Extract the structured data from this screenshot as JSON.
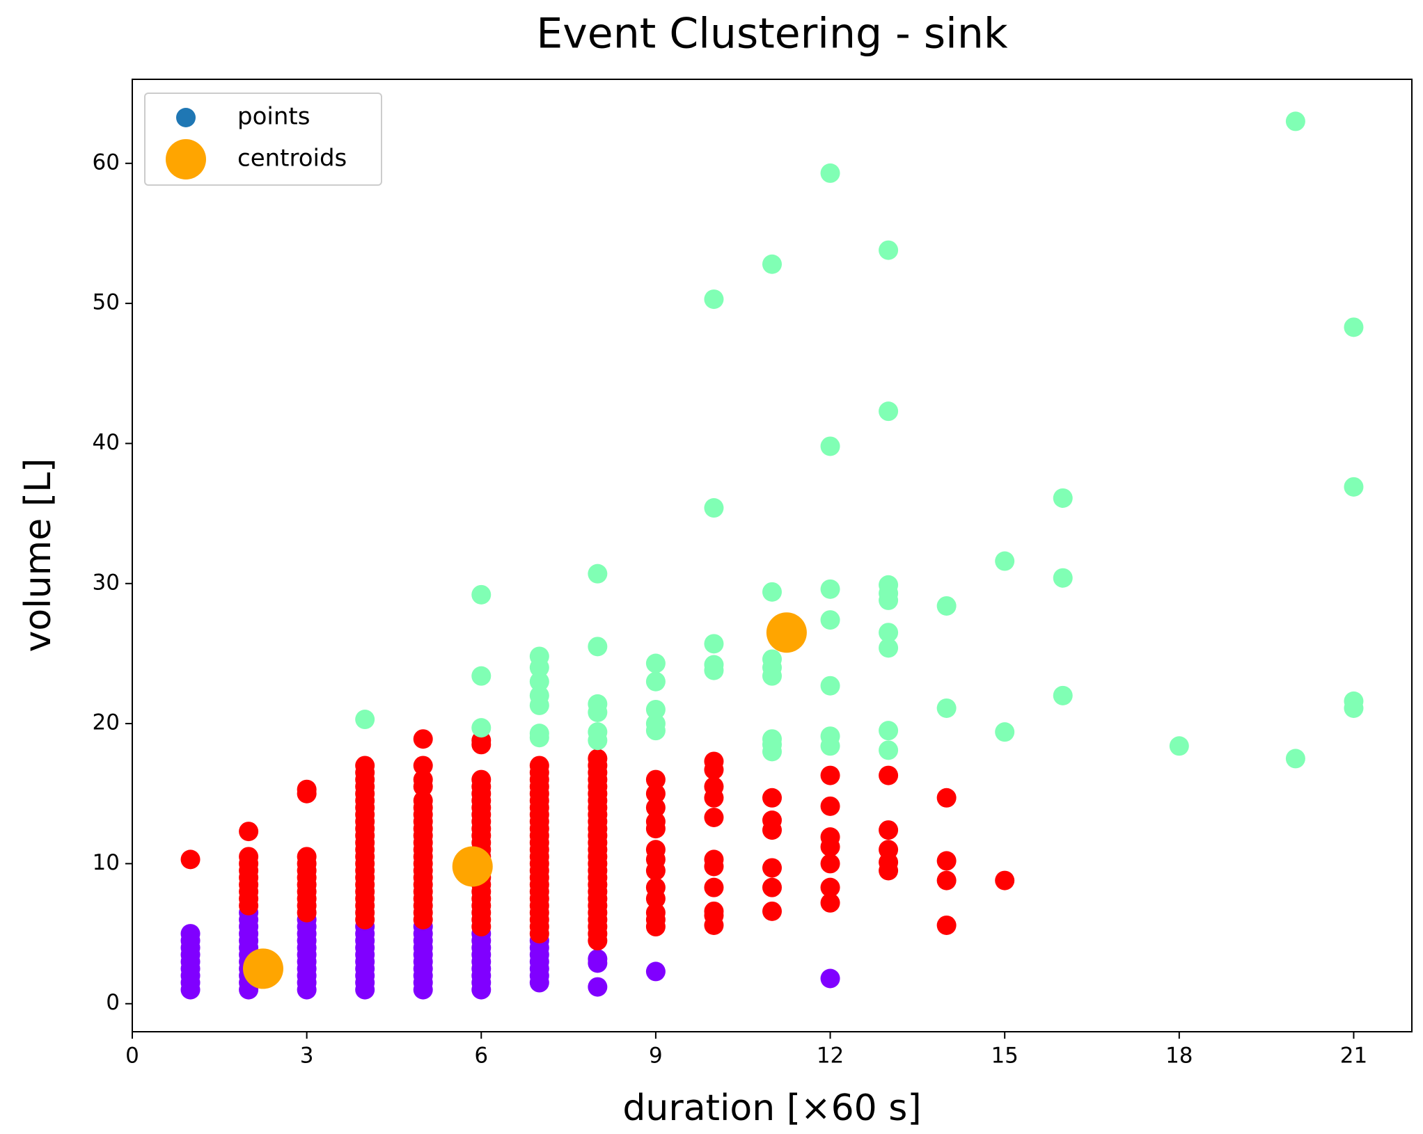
{
  "chart_data": {
    "type": "scatter",
    "title": "Event Clustering - sink",
    "xlabel": "duration [×60 s]",
    "ylabel": "volume [L]",
    "xlim": [
      0,
      22
    ],
    "ylim": [
      -2,
      66
    ],
    "xticks": [
      0,
      3,
      6,
      9,
      12,
      15,
      18,
      21
    ],
    "yticks": [
      0,
      10,
      20,
      30,
      40,
      50,
      60
    ],
    "legend": "upper left",
    "series": [
      {
        "name": "points",
        "color": "#1f77b4",
        "groups": [
          {
            "color": "#8000ff",
            "columns": [
              {
                "x": 1,
                "values": [
                  1,
                  1.5,
                  2,
                  2.5,
                  3,
                  3.5,
                  4,
                  4.5,
                  5
                ]
              },
              {
                "x": 2,
                "values": [
                  1,
                  1.5,
                  2,
                  2.5,
                  3,
                  3.5,
                  4,
                  4.5,
                  5,
                  5.5,
                  6,
                  6.5
                ]
              },
              {
                "x": 3,
                "values": [
                  1,
                  1.5,
                  2,
                  2.5,
                  3,
                  3.5,
                  4,
                  4.5,
                  5,
                  5.5,
                  6
                ]
              },
              {
                "x": 4,
                "values": [
                  1,
                  1.5,
                  2,
                  2.5,
                  3,
                  3.5,
                  4,
                  4.5,
                  5,
                  5.5
                ]
              },
              {
                "x": 5,
                "values": [
                  1,
                  1.5,
                  2,
                  2.5,
                  3,
                  3.5,
                  4,
                  4.5,
                  5,
                  5.5
                ]
              },
              {
                "x": 6,
                "values": [
                  1,
                  1.5,
                  2,
                  2.5,
                  3,
                  3.5,
                  4,
                  4.5,
                  5
                ]
              },
              {
                "x": 7,
                "values": [
                  1.5,
                  2,
                  2.5,
                  3,
                  3.5,
                  4,
                  4.5
                ]
              },
              {
                "x": 8,
                "values": [
                  1.2,
                  2.9,
                  3.2
                ]
              },
              {
                "x": 9,
                "values": [
                  2.3
                ]
              },
              {
                "x": 12,
                "values": [
                  1.8
                ]
              }
            ]
          },
          {
            "color": "#ff0000",
            "columns": [
              {
                "x": 1,
                "values": [
                  10.3
                ]
              },
              {
                "x": 2,
                "values": [
                  7,
                  7.5,
                  8,
                  8.5,
                  9,
                  9.5,
                  10,
                  10.5,
                  12.3
                ]
              },
              {
                "x": 3,
                "values": [
                  6.5,
                  7,
                  7.5,
                  8,
                  8.5,
                  9,
                  9.5,
                  10,
                  10.5,
                  15,
                  15.3
                ]
              },
              {
                "x": 4,
                "values": [
                  6,
                  6.5,
                  7,
                  7.5,
                  8,
                  8.5,
                  9,
                  9.5,
                  10,
                  10.5,
                  11,
                  11.5,
                  12,
                  12.5,
                  13,
                  13.5,
                  14,
                  14.5,
                  15,
                  15.5,
                  16,
                  16.5,
                  17
                ]
              },
              {
                "x": 5,
                "values": [
                  6,
                  6.5,
                  7,
                  7.5,
                  8,
                  8.5,
                  9,
                  9.5,
                  10,
                  10.5,
                  11,
                  11.5,
                  12,
                  12.5,
                  13,
                  13.5,
                  14,
                  14.5,
                  15.5,
                  16,
                  17,
                  18.9
                ]
              },
              {
                "x": 6,
                "values": [
                  5.5,
                  6,
                  6.5,
                  7,
                  7.5,
                  8,
                  8.5,
                  9,
                  9.5,
                  10,
                  10.5,
                  11,
                  11.5,
                  12,
                  12.5,
                  13,
                  13.5,
                  14,
                  14.5,
                  15,
                  15.5,
                  16,
                  18.5,
                  18.8
                ]
              },
              {
                "x": 7,
                "values": [
                  5,
                  5.5,
                  6,
                  6.5,
                  7,
                  7.5,
                  8,
                  8.5,
                  9,
                  9.5,
                  10,
                  10.5,
                  11,
                  11.5,
                  12,
                  12.5,
                  13,
                  13.5,
                  14,
                  14.5,
                  15,
                  15.5,
                  16,
                  16.5,
                  17
                ]
              },
              {
                "x": 8,
                "values": [
                  4.5,
                  5,
                  5.5,
                  6,
                  6.5,
                  7,
                  7.5,
                  8,
                  8.5,
                  9,
                  9.5,
                  10,
                  10.5,
                  11,
                  11.5,
                  12,
                  12.5,
                  13,
                  13.5,
                  14,
                  14.5,
                  15,
                  15.5,
                  16,
                  16.5,
                  17,
                  17.5
                ]
              },
              {
                "x": 9,
                "values": [
                  5.5,
                  6,
                  6.5,
                  7.5,
                  8.3,
                  9.5,
                  10.3,
                  11,
                  12.5,
                  13,
                  14,
                  15,
                  16
                ]
              },
              {
                "x": 10,
                "values": [
                  5.6,
                  6.3,
                  6.6,
                  8.3,
                  9.8,
                  10.3,
                  13.3,
                  14.7,
                  15.5,
                  16.7,
                  17.3
                ]
              },
              {
                "x": 11,
                "values": [
                  6.6,
                  8.3,
                  9.7,
                  12.4,
                  13.1,
                  14.7
                ]
              },
              {
                "x": 12,
                "values": [
                  7.2,
                  8.3,
                  10,
                  11.2,
                  11.9,
                  14.1,
                  16.3
                ]
              },
              {
                "x": 13,
                "values": [
                  9.5,
                  10.1,
                  11,
                  12.4,
                  16.3
                ]
              },
              {
                "x": 14,
                "values": [
                  5.6,
                  8.8,
                  10.2,
                  14.7
                ]
              },
              {
                "x": 15,
                "values": [
                  8.8
                ]
              }
            ]
          },
          {
            "color": "#80ffb4",
            "columns": [
              {
                "x": 4,
                "values": [
                  20.3
                ]
              },
              {
                "x": 6,
                "values": [
                  19.7,
                  23.4,
                  29.2
                ]
              },
              {
                "x": 7,
                "values": [
                  19,
                  19.3,
                  21.3,
                  22,
                  23,
                  24,
                  24.8
                ]
              },
              {
                "x": 8,
                "values": [
                  18.8,
                  19.4,
                  20.8,
                  21.4,
                  25.5,
                  30.7
                ]
              },
              {
                "x": 9,
                "values": [
                  19.5,
                  20,
                  21,
                  23,
                  24.3
                ]
              },
              {
                "x": 10,
                "values": [
                  23.8,
                  24.2,
                  25.7,
                  35.4,
                  50.3
                ]
              },
              {
                "x": 11,
                "values": [
                  18,
                  18.5,
                  18.9,
                  23.4,
                  24,
                  24.6,
                  29.4,
                  52.8
                ]
              },
              {
                "x": 12,
                "values": [
                  18.4,
                  19.1,
                  22.7,
                  27.4,
                  29.6,
                  39.8,
                  59.3
                ]
              },
              {
                "x": 13,
                "values": [
                  18.1,
                  19.5,
                  25.4,
                  26.5,
                  28.8,
                  29.3,
                  29.9,
                  42.3,
                  53.8
                ]
              },
              {
                "x": 14,
                "values": [
                  21.1,
                  28.4
                ]
              },
              {
                "x": 15,
                "values": [
                  19.4,
                  31.6
                ]
              },
              {
                "x": 16,
                "values": [
                  22,
                  30.4,
                  36.1
                ]
              },
              {
                "x": 18,
                "values": [
                  18.4
                ]
              },
              {
                "x": 20,
                "values": [
                  17.5,
                  63
                ]
              },
              {
                "x": 21,
                "values": [
                  21.1,
                  21.6,
                  36.9,
                  48.3
                ]
              }
            ]
          }
        ]
      },
      {
        "name": "centroids",
        "color": "#ffa500",
        "x": [
          2.25,
          5.85,
          11.25
        ],
        "values": [
          2.5,
          9.8,
          26.5
        ]
      }
    ]
  }
}
